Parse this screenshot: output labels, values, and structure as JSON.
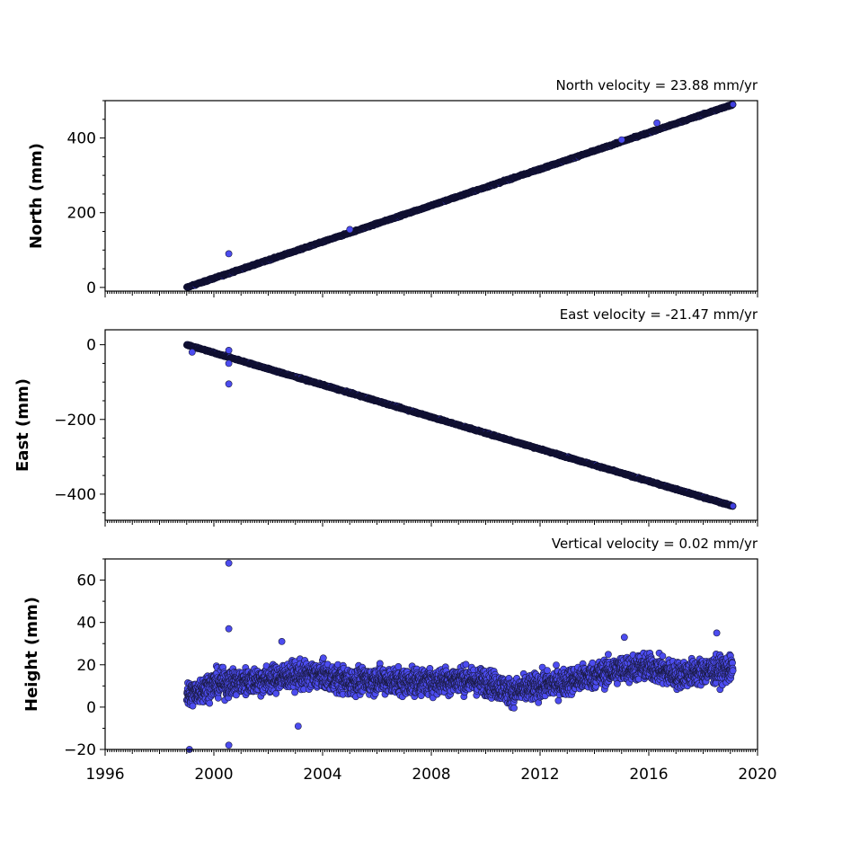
{
  "chart_data": [
    {
      "type": "scatter",
      "name": "north-panel",
      "title": "North velocity = 23.88 mm/yr",
      "ylabel": "North (mm)",
      "xlim": [
        1996,
        2020
      ],
      "ylim": [
        -10,
        500
      ],
      "yticks": [
        0,
        200,
        400
      ],
      "ytick_labels": [
        "0",
        "200",
        "400"
      ],
      "x_start": 1999.0,
      "x_end": 2019.1,
      "trend": {
        "slope_mm_per_yr": 23.88,
        "start_value": 0,
        "end_value": 490
      },
      "points": [
        [
          1999.0,
          0
        ],
        [
          1999.3,
          5
        ],
        [
          1999.6,
          12
        ],
        [
          2000.0,
          28
        ],
        [
          2000.3,
          35
        ],
        [
          2000.55,
          90
        ],
        [
          2000.6,
          40
        ],
        [
          2000.8,
          55
        ],
        [
          2001.0,
          60
        ],
        [
          2004.0,
          130
        ],
        [
          2008.0,
          230
        ],
        [
          2012.0,
          320
        ],
        [
          2015.0,
          395
        ],
        [
          2016.3,
          440
        ],
        [
          2019.0,
          490
        ]
      ],
      "outliers": [
        [
          2000.55,
          90
        ],
        [
          2005.0,
          155
        ],
        [
          2015.0,
          395
        ],
        [
          2016.3,
          440
        ]
      ],
      "color": "#4c4cf0"
    },
    {
      "type": "scatter",
      "name": "east-panel",
      "title": "East velocity = -21.47 mm/yr",
      "ylabel": "East (mm)",
      "xlim": [
        1996,
        2020
      ],
      "ylim": [
        -470,
        40
      ],
      "yticks": [
        0,
        -200,
        -400
      ],
      "ytick_labels": [
        "0",
        "−200",
        "−400"
      ],
      "x_start": 1999.0,
      "x_end": 2019.1,
      "trend": {
        "slope_mm_per_yr": -21.47,
        "start_value": 0,
        "end_value": -432
      },
      "points": [
        [
          1999.0,
          0
        ],
        [
          1999.5,
          -10
        ],
        [
          2000.0,
          -20
        ],
        [
          2002.0,
          -65
        ],
        [
          2004.0,
          -110
        ],
        [
          2008.0,
          -195
        ],
        [
          2012.0,
          -280
        ],
        [
          2016.0,
          -365
        ],
        [
          2019.0,
          -432
        ]
      ],
      "outliers": [
        [
          1999.2,
          -20
        ],
        [
          2000.55,
          -15
        ],
        [
          2000.55,
          -50
        ],
        [
          2000.55,
          -105
        ]
      ],
      "color": "#4c4cf0"
    },
    {
      "type": "scatter",
      "name": "height-panel",
      "title": "Vertical velocity = 0.02 mm/yr",
      "ylabel": "Height (mm)",
      "xlim": [
        1996,
        2020
      ],
      "ylim": [
        -20,
        70
      ],
      "yticks": [
        -20,
        0,
        20,
        40,
        60
      ],
      "ytick_labels": [
        "−20",
        "0",
        "20",
        "40",
        "60"
      ],
      "x_start": 1999.0,
      "x_end": 2019.1,
      "baseline": [
        [
          1999.0,
          5
        ],
        [
          2000.0,
          11
        ],
        [
          2001.0,
          12
        ],
        [
          2002.0,
          13
        ],
        [
          2003.0,
          15
        ],
        [
          2004.0,
          15
        ],
        [
          2005.0,
          12
        ],
        [
          2006.0,
          13
        ],
        [
          2007.0,
          12
        ],
        [
          2008.0,
          12
        ],
        [
          2009.0,
          13
        ],
        [
          2010.0,
          12
        ],
        [
          2011.0,
          7
        ],
        [
          2012.0,
          10
        ],
        [
          2013.0,
          12
        ],
        [
          2014.0,
          15
        ],
        [
          2015.0,
          18
        ],
        [
          2016.0,
          19
        ],
        [
          2017.0,
          15
        ],
        [
          2018.0,
          17
        ],
        [
          2019.1,
          18
        ]
      ],
      "spread": 8,
      "outliers": [
        [
          2000.55,
          68
        ],
        [
          2000.55,
          37
        ],
        [
          2000.55,
          -18
        ],
        [
          1999.1,
          -20
        ],
        [
          2002.5,
          31
        ],
        [
          2003.1,
          -9
        ],
        [
          2015.1,
          33
        ],
        [
          2018.5,
          35
        ]
      ],
      "color": "#4c4cf0"
    }
  ],
  "x_axis": {
    "ticks": [
      1996,
      2000,
      2004,
      2008,
      2012,
      2016,
      2020
    ],
    "tick_labels": [
      "1996",
      "2000",
      "2004",
      "2008",
      "2012",
      "2016",
      "2020"
    ]
  }
}
